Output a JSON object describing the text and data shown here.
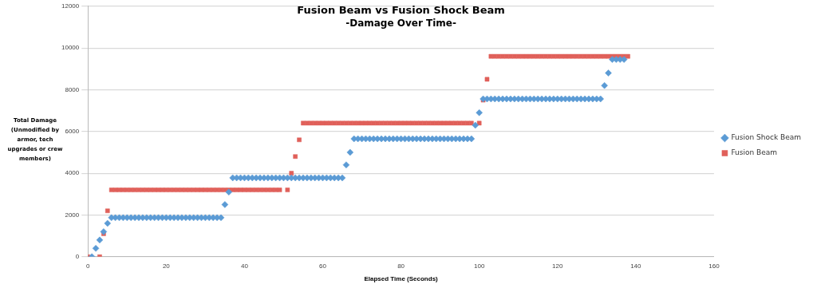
{
  "chart_data": {
    "type": "scatter",
    "title": "Fusion Beam vs Fusion Shock Beam",
    "subtitle": "-Damage Over Time-",
    "xlabel": "Elapsed Time (Seconds)",
    "ylabel": "Total Damage (Unmodified by armor, tech upgrades or crew members)",
    "x": [
      0,
      1,
      2,
      3,
      4,
      5,
      6,
      7,
      8,
      9,
      10,
      11,
      12,
      13,
      14,
      15,
      16,
      17,
      18,
      19,
      20,
      21,
      22,
      23,
      24,
      25,
      26,
      27,
      28,
      29,
      30,
      31,
      32,
      33,
      34,
      35,
      36,
      37,
      38,
      39,
      40,
      41,
      42,
      43,
      44,
      45,
      46,
      47,
      48,
      49,
      50,
      51,
      52,
      53,
      54,
      55,
      56,
      57,
      58,
      59,
      60,
      61,
      62,
      63,
      64,
      65,
      66,
      67,
      68,
      69,
      70,
      71,
      72,
      73,
      74,
      75,
      76,
      77,
      78,
      79,
      80,
      81,
      82,
      83,
      84,
      85,
      86,
      87,
      88,
      89,
      90,
      91,
      92,
      93,
      94,
      95,
      96,
      97,
      98,
      99,
      100,
      101,
      102,
      103,
      104,
      105,
      106,
      107,
      108,
      109,
      110,
      111,
      112,
      113,
      114,
      115,
      116,
      117,
      118,
      119,
      120,
      121,
      122,
      123,
      124,
      125,
      126,
      127,
      128,
      129,
      130,
      131,
      132,
      133,
      134,
      135,
      136,
      137,
      138
    ],
    "series": [
      {
        "name": "Fusion Shock Beam",
        "color": "#5b9bd5",
        "marker": "diamond",
        "values": [
          null,
          0,
          400,
          800,
          1200,
          1600,
          1870,
          1870,
          1870,
          1870,
          1870,
          1870,
          1870,
          1870,
          1870,
          1870,
          1870,
          1870,
          1870,
          1870,
          1870,
          1870,
          1870,
          1870,
          1870,
          1870,
          1870,
          1870,
          1870,
          1870,
          1870,
          1870,
          1870,
          1870,
          1870,
          2500,
          3100,
          3780,
          3780,
          3780,
          3780,
          3780,
          3780,
          3780,
          3780,
          3780,
          3780,
          3780,
          3780,
          3780,
          3780,
          3780,
          3780,
          3780,
          3780,
          3780,
          3780,
          3780,
          3780,
          3780,
          3780,
          3780,
          3780,
          3780,
          3780,
          3780,
          4400,
          5000,
          5650,
          5650,
          5650,
          5650,
          5650,
          5650,
          5650,
          5650,
          5650,
          5650,
          5650,
          5650,
          5650,
          5650,
          5650,
          5650,
          5650,
          5650,
          5650,
          5650,
          5650,
          5650,
          5650,
          5650,
          5650,
          5650,
          5650,
          5650,
          5650,
          5650,
          5650,
          6300,
          6900,
          7560,
          7560,
          7560,
          7560,
          7560,
          7560,
          7560,
          7560,
          7560,
          7560,
          7560,
          7560,
          7560,
          7560,
          7560,
          7560,
          7560,
          7560,
          7560,
          7560,
          7560,
          7560,
          7560,
          7560,
          7560,
          7560,
          7560,
          7560,
          7560,
          7560,
          7560,
          8200,
          8800,
          9450,
          9450,
          9450,
          9450,
          null
        ]
      },
      {
        "name": "Fusion Beam",
        "color": "#e0605a",
        "marker": "square",
        "values": [
          0,
          null,
          null,
          0,
          1100,
          2200,
          3200,
          3200,
          3200,
          3200,
          3200,
          3200,
          3200,
          3200,
          3200,
          3200,
          3200,
          3200,
          3200,
          3200,
          3200,
          3200,
          3200,
          3200,
          3200,
          3200,
          3200,
          3200,
          3200,
          3200,
          3200,
          3200,
          3200,
          3200,
          3200,
          3200,
          3200,
          3200,
          3200,
          3200,
          3200,
          3200,
          3200,
          3200,
          3200,
          3200,
          3200,
          3200,
          3200,
          3200,
          null,
          3200,
          4000,
          4800,
          5600,
          6400,
          6400,
          6400,
          6400,
          6400,
          6400,
          6400,
          6400,
          6400,
          6400,
          6400,
          6400,
          6400,
          6400,
          6400,
          6400,
          6400,
          6400,
          6400,
          6400,
          6400,
          6400,
          6400,
          6400,
          6400,
          6400,
          6400,
          6400,
          6400,
          6400,
          6400,
          6400,
          6400,
          6400,
          6400,
          6400,
          6400,
          6400,
          6400,
          6400,
          6400,
          6400,
          6400,
          6400,
          null,
          6400,
          7500,
          8500,
          9600,
          9600,
          9600,
          9600,
          9600,
          9600,
          9600,
          9600,
          9600,
          9600,
          9600,
          9600,
          9600,
          9600,
          9600,
          9600,
          9600,
          9600,
          9600,
          9600,
          9600,
          9600,
          9600,
          9600,
          9600,
          9600,
          9600,
          9600,
          9600,
          9600,
          9600,
          9600,
          9600,
          9600,
          9600,
          9600
        ]
      }
    ],
    "xlim": [
      0,
      160
    ],
    "xticks": [
      0,
      20,
      40,
      60,
      80,
      100,
      120,
      140,
      160
    ],
    "ylim": [
      0,
      12000
    ],
    "yticks": [
      0,
      2000,
      4000,
      6000,
      8000,
      10000,
      12000
    ],
    "grid": "y",
    "legend": "right"
  }
}
